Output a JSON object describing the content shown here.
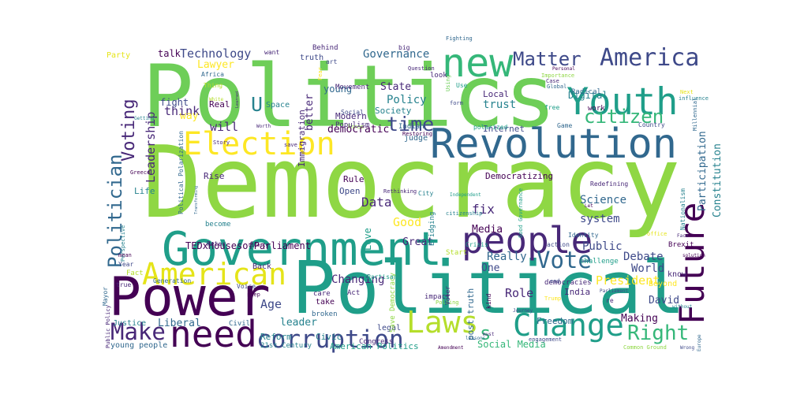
{
  "words": [
    "Democracy",
    "Politics",
    "Political",
    "Government",
    "Power",
    "Revolution",
    "Youth",
    "new",
    "Future",
    "Election",
    "people",
    "American",
    "need",
    "Laws",
    "Change",
    "corruption",
    "Vote",
    "Right",
    "Make",
    "Matter",
    "America",
    "citizen",
    "time",
    "Voting",
    "Politician",
    "U",
    "s",
    "Leadership",
    "Technology",
    "Governance",
    "Lawyer",
    "TEDxHousesofParliament",
    "Policy",
    "Debate",
    "World",
    "President",
    "Public",
    "Science",
    "system",
    "Participation",
    "Constitution",
    "Data",
    "Good",
    "fix",
    "Media",
    "Love",
    "Great",
    "One",
    "Role",
    "Really",
    "Changing",
    "Age",
    "leader",
    "Liberal",
    "Reform",
    "David",
    "Making",
    "India",
    "State",
    "young",
    "better",
    "will",
    "think",
    "fight",
    "democratic",
    "Digital",
    "trust",
    "Local",
    "Internet",
    "Modern",
    "Society",
    "Immigration",
    "Democratizing",
    "Rule",
    "Open",
    "Life",
    "Rise",
    "become",
    "Political Polarization",
    "Party",
    "talk",
    "Peter",
    "Crisis",
    "action",
    "Brexit",
    "Nationalism",
    "Good Governance",
    "know",
    "Beyond",
    "Freedom",
    "Social Media",
    "American Politics",
    "21st Century",
    "young people",
    "Justice",
    "Fact",
    "true",
    "Mayor",
    "Public Policy",
    "Back",
    "Voice",
    "Generation",
    "Year",
    "Perspective",
    "mean",
    "Greece",
    "Civic",
    "take",
    "care",
    "broken",
    "Act",
    "Congress",
    "legal",
    "Save Democracy",
    "post truth",
    "impact",
    "Polling",
    "Voter",
    "Bridging",
    "Start",
    "Partisan",
    "democracies",
    "Trump",
    "end",
    "kind",
    "lessons",
    "engagement",
    "must",
    "Amendment",
    "Common Ground",
    "Wrong",
    "Europe",
    "Civil",
    "Identity",
    "challenge",
    "Parliament",
    "solution",
    "Face",
    "office",
    "Redefining",
    "Independent",
    "citizenship",
    "Rethinking",
    "Liberty",
    "Transforming",
    "save",
    "Three",
    "judge",
    "Indian",
    "Restoring",
    "polarized",
    "Game",
    "Global",
    "Radical",
    "Importance",
    "Personal",
    "Next",
    "influence",
    "Millennial",
    "Country",
    "work",
    "free",
    "Case",
    "Fighting",
    "big",
    "Question",
    "Using",
    "form",
    "Use",
    "look",
    "Behind",
    "truth",
    "want",
    "Africa",
    "Thing",
    "White",
    "Real",
    "Learned",
    "Space",
    "Fear",
    "art",
    "Populism",
    "Movement",
    "Social",
    "way",
    "Getting",
    "Story",
    "Worth",
    "City",
    "step",
    "Journey",
    "Let",
    "re",
    "without"
  ]
}
